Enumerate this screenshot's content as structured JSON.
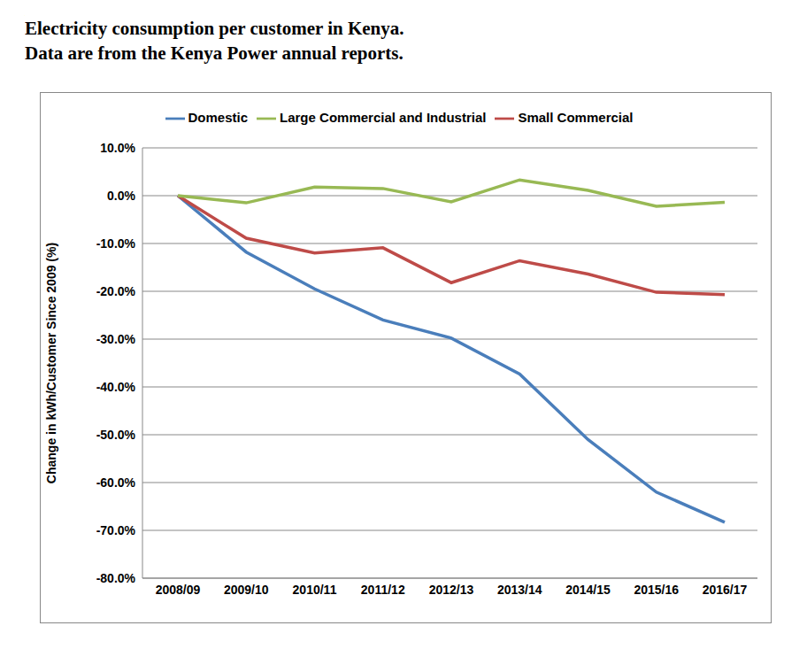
{
  "chart_data": {
    "type": "line",
    "title": "Electricity consumption per customer in Kenya.",
    "subtitle": "Data are from the Kenya Power annual reports.",
    "y_label": "Change in kWh/Customer Since 2009 (%)",
    "categories": [
      "2008/09",
      "2009/10",
      "2010/11",
      "2011/12",
      "2012/13",
      "2013/14",
      "2014/15",
      "2015/16",
      "2016/17"
    ],
    "series": [
      {
        "name": "Domestic",
        "color": "#4a7ebb",
        "values": [
          0,
          -11.8,
          -19.5,
          -26,
          -29.8,
          -37.3,
          -51,
          -62,
          -68.3
        ]
      },
      {
        "name": "Small Commercial",
        "color": "#be4b48",
        "values": [
          0,
          -8.9,
          -12,
          -10.9,
          -18.2,
          -13.6,
          -16.4,
          -20.2,
          -20.7
        ]
      },
      {
        "name": "Large Commercial and Industrial",
        "color": "#98b954",
        "values": [
          0,
          -1.5,
          1.8,
          1.5,
          -1.3,
          3.3,
          1.1,
          -2.2,
          -1.4
        ]
      }
    ],
    "ylim": [
      -80,
      10
    ],
    "yticks": [
      {
        "value": 10,
        "label": "10.0%"
      },
      {
        "value": 0,
        "label": "0.0%"
      },
      {
        "value": -10,
        "label": "-10.0%"
      },
      {
        "value": -20,
        "label": "-20.0%"
      },
      {
        "value": -30,
        "label": "-30.0%"
      },
      {
        "value": -40,
        "label": "-40.0%"
      },
      {
        "value": -50,
        "label": "-50.0%"
      },
      {
        "value": -60,
        "label": "-60.0%"
      },
      {
        "value": -70,
        "label": "-70.0%"
      },
      {
        "value": -80,
        "label": "-80.0%"
      }
    ],
    "grid": true,
    "legend": "top"
  }
}
